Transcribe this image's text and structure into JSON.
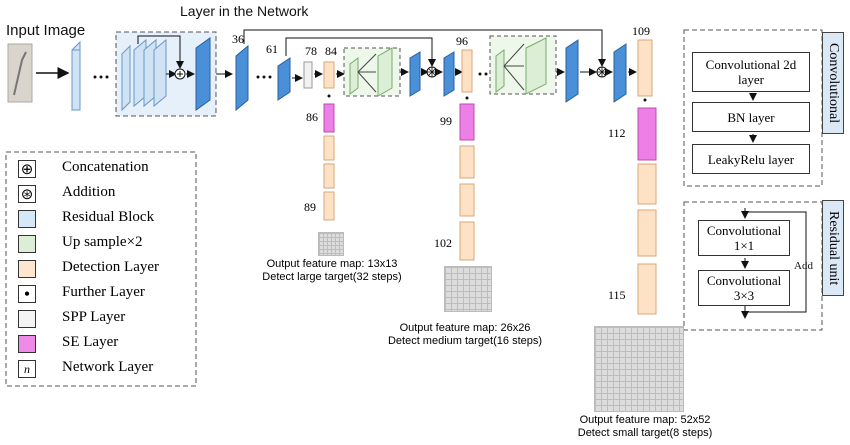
{
  "title": "Layer in the Network",
  "input_label": "Input Image",
  "layer_numbers": {
    "n36": "36",
    "n61": "61",
    "n78": "78",
    "n84": "84",
    "n86": "86",
    "n89": "89",
    "n96": "96",
    "n99": "99",
    "n102": "102",
    "n109": "109",
    "n112": "112",
    "n115": "115"
  },
  "outputs": [
    {
      "line1": "Output feature map: 13x13",
      "line2": "Detect large target(32 steps)"
    },
    {
      "line1": "Output feature map: 26x26",
      "line2": "Detect medium target(16 steps)"
    },
    {
      "line1": "Output feature map: 52x52",
      "line2": "Detect small target(8 steps)"
    }
  ],
  "legend": [
    {
      "symbol": "⊕",
      "label": "Concatenation",
      "color": "#ffffff"
    },
    {
      "symbol": "⊛",
      "label": "Addition",
      "color": "#ffffff"
    },
    {
      "symbol": "",
      "label": "Residual Block",
      "color": "#d6e8f7"
    },
    {
      "symbol": "",
      "label": "Up sample×2",
      "color": "#dcefd6"
    },
    {
      "symbol": "",
      "label": "Detection Layer",
      "color": "#fde6cf"
    },
    {
      "symbol": "•",
      "label": "Further Layer",
      "color": "#ffffff"
    },
    {
      "symbol": "",
      "label": "SPP Layer",
      "color": "#f4f4f4"
    },
    {
      "symbol": "",
      "label": "SE Layer",
      "color": "#f08ae8"
    },
    {
      "symbol": "n",
      "label": "Network Layer",
      "color": "#ffffff"
    }
  ],
  "convolutional": {
    "tab": "Convolutional",
    "boxes": [
      "Convolutional 2d layer",
      "BN layer",
      "LeakyRelu layer"
    ]
  },
  "residual": {
    "tab": "Residual unit",
    "boxes": [
      "Convolutional 1×1",
      "Convolutional 3×3"
    ],
    "add": "Add"
  },
  "colors": {
    "residual_light": "#cfe3f5",
    "residual_dark": "#4a90d9",
    "upsample": "#dcefd6",
    "detection": "#fde2c6",
    "se": "#ee7fe6",
    "spp": "#f2f2f2"
  }
}
